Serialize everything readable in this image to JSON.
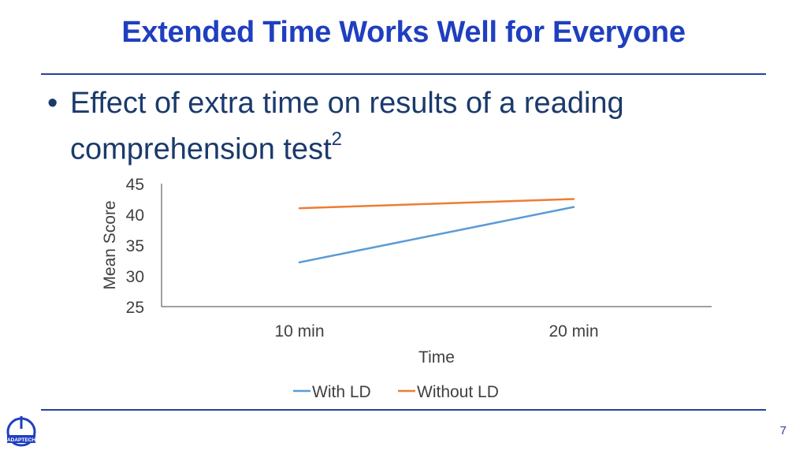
{
  "slide": {
    "title": "Extended Time Works Well for Everyone",
    "bullet_dot": "•",
    "bullet_text": "Effect of extra time on results of a reading comprehension test",
    "bullet_superscript": "2",
    "page_number": "7",
    "logo_text": "ADAPTECH"
  },
  "colors": {
    "title": "#1f3fbf",
    "rule": "#2a3f9c",
    "series_with_ld": "#5b9bd5",
    "series_without_ld": "#ed7d31"
  },
  "chart_data": {
    "type": "line",
    "title": "",
    "xlabel": "Time",
    "ylabel": "Mean Score",
    "categories": [
      "10 min",
      "20 min"
    ],
    "ylim": [
      25,
      45
    ],
    "yticks": [
      45,
      40,
      35,
      30,
      25
    ],
    "grid": false,
    "legend_position": "bottom",
    "series": [
      {
        "name": "With LD",
        "values": [
          32.2,
          41.2
        ]
      },
      {
        "name": "Without LD",
        "values": [
          41.0,
          42.5
        ]
      }
    ]
  }
}
